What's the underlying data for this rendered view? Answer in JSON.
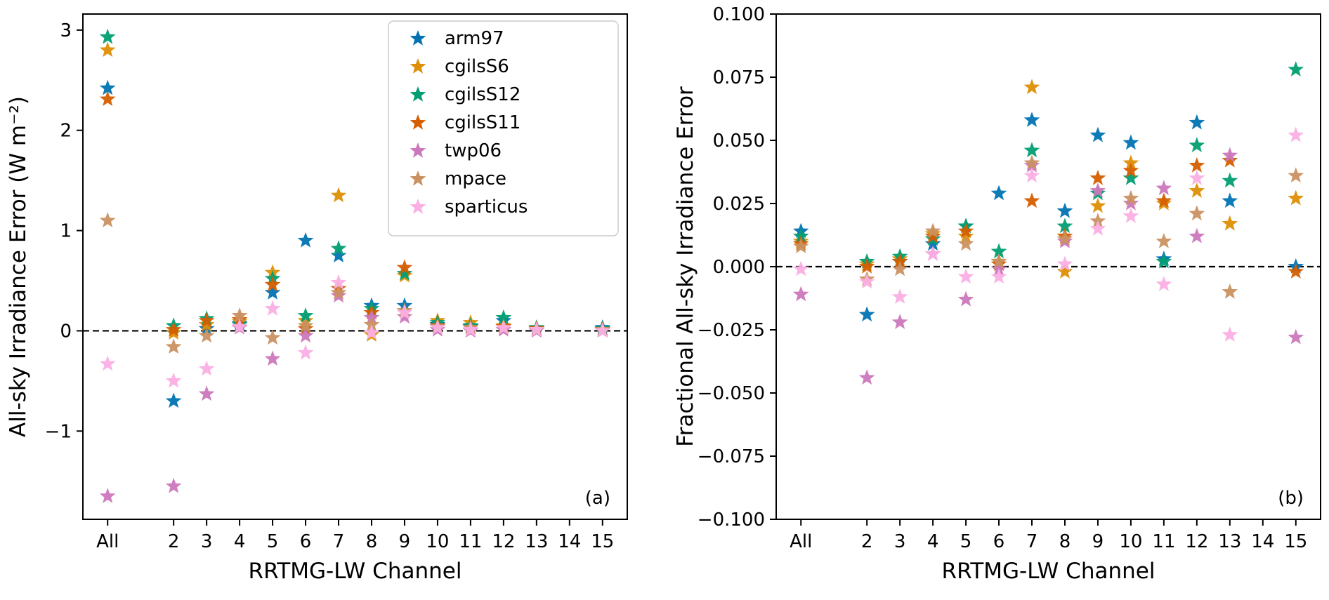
{
  "figure": {
    "background": "#ffffff",
    "text_color": "#000000"
  },
  "chart_data": [
    {
      "type": "scatter",
      "panel_label": "(a)",
      "xlabel": "RRTMG-LW Channel",
      "ylabel": "All-sky Irradiance Error (W m⁻²)",
      "x_categories": [
        "All",
        "2",
        "3",
        "4",
        "5",
        "6",
        "7",
        "8",
        "9",
        "10",
        "11",
        "12",
        "13",
        "14",
        "15"
      ],
      "x_positions": [
        0,
        2,
        3,
        4,
        5,
        6,
        7,
        8,
        9,
        10,
        11,
        12,
        13,
        14,
        15
      ],
      "xlim": [
        -0.75,
        15.75
      ],
      "ylim": [
        -1.88,
        3.16
      ],
      "yticks": [
        -1,
        0,
        1,
        2,
        3
      ],
      "ytick_labels": [
        "−1",
        "0",
        "1",
        "2",
        "3"
      ],
      "zero_line": true,
      "grid": false,
      "legend": {
        "visible": true,
        "position": "upper right"
      },
      "series": [
        {
          "name": "arm97",
          "color": "#0173b2",
          "marker": "star",
          "values": [
            2.42,
            -0.7,
            0.02,
            0.07,
            0.38,
            0.9,
            0.75,
            0.25,
            0.25,
            0.06,
            0.04,
            0.1,
            0.02,
            null,
            0.03
          ]
        },
        {
          "name": "cgilsS6",
          "color": "#de8f05",
          "marker": "star",
          "values": [
            2.8,
            -0.02,
            0.06,
            0.09,
            0.58,
            0.1,
            1.35,
            -0.04,
            0.55,
            0.1,
            0.08,
            0.05,
            0.02,
            null,
            0.01
          ]
        },
        {
          "name": "cgilsS12",
          "color": "#029e73",
          "marker": "star",
          "values": [
            2.93,
            0.05,
            0.12,
            0.06,
            0.52,
            0.15,
            0.82,
            0.22,
            0.57,
            0.08,
            0.05,
            0.13,
            0.03,
            null,
            0.02
          ]
        },
        {
          "name": "cgilsS11",
          "color": "#d55e00",
          "marker": "star",
          "values": [
            2.31,
            0.01,
            0.1,
            0.11,
            0.46,
            0.02,
            0.42,
            0.18,
            0.63,
            0.05,
            0.03,
            0.04,
            0.02,
            null,
            0.01
          ]
        },
        {
          "name": "twp06",
          "color": "#cc78bc",
          "marker": "star",
          "values": [
            -1.65,
            -1.55,
            -0.63,
            0.03,
            -0.28,
            -0.05,
            0.35,
            0.13,
            0.14,
            0.01,
            0.0,
            0.01,
            0.0,
            null,
            0.0
          ]
        },
        {
          "name": "mpace",
          "color": "#ca9161",
          "marker": "star",
          "values": [
            1.1,
            -0.16,
            -0.05,
            0.15,
            -0.07,
            0.05,
            0.38,
            0.06,
            0.2,
            0.04,
            0.03,
            0.03,
            0.01,
            null,
            0.01
          ]
        },
        {
          "name": "sparticus",
          "color": "#fbafe4",
          "marker": "star",
          "values": [
            -0.33,
            -0.5,
            -0.38,
            0.04,
            0.22,
            -0.22,
            0.48,
            -0.02,
            0.18,
            0.03,
            0.01,
            0.03,
            0.01,
            null,
            0.0
          ]
        }
      ]
    },
    {
      "type": "scatter",
      "panel_label": "(b)",
      "xlabel": "RRTMG-LW Channel",
      "ylabel": "Fractional All-sky Irradiance Error",
      "x_categories": [
        "All",
        "2",
        "3",
        "4",
        "5",
        "6",
        "7",
        "8",
        "9",
        "10",
        "11",
        "12",
        "13",
        "14",
        "15"
      ],
      "x_positions": [
        0,
        2,
        3,
        4,
        5,
        6,
        7,
        8,
        9,
        10,
        11,
        12,
        13,
        14,
        15
      ],
      "xlim": [
        -0.75,
        15.75
      ],
      "ylim": [
        -0.1,
        0.1
      ],
      "yticks": [
        -0.1,
        -0.075,
        -0.05,
        -0.025,
        0,
        0.025,
        0.05,
        0.075,
        0.1
      ],
      "ytick_labels": [
        "−0.100",
        "−0.075",
        "−0.050",
        "−0.025",
        "0.000",
        "0.025",
        "0.050",
        "0.075",
        "0.100"
      ],
      "zero_line": true,
      "grid": false,
      "legend": {
        "visible": false,
        "position": null
      },
      "series": [
        {
          "name": "arm97",
          "color": "#0173b2",
          "marker": "star",
          "values": [
            0.014,
            -0.019,
            0.002,
            0.009,
            0.016,
            0.029,
            0.058,
            0.022,
            0.052,
            0.049,
            0.003,
            0.057,
            0.026,
            null,
            0.0
          ]
        },
        {
          "name": "cgilsS6",
          "color": "#de8f05",
          "marker": "star",
          "values": [
            0.01,
            0.001,
            0.003,
            0.013,
            0.012,
            0.002,
            0.071,
            -0.002,
            0.024,
            0.041,
            0.025,
            0.03,
            0.017,
            null,
            0.027
          ]
        },
        {
          "name": "cgilsS12",
          "color": "#029e73",
          "marker": "star",
          "values": [
            0.012,
            0.002,
            0.004,
            0.011,
            0.016,
            0.006,
            0.046,
            0.016,
            0.029,
            0.035,
            0.002,
            0.048,
            0.034,
            null,
            0.078
          ]
        },
        {
          "name": "cgilsS11",
          "color": "#d55e00",
          "marker": "star",
          "values": [
            0.009,
            0.0,
            0.002,
            0.012,
            0.014,
            0.001,
            0.026,
            0.012,
            0.035,
            0.038,
            0.026,
            0.04,
            0.042,
            null,
            -0.002
          ]
        },
        {
          "name": "twp06",
          "color": "#cc78bc",
          "marker": "star",
          "values": [
            -0.011,
            -0.044,
            -0.022,
            0.005,
            -0.013,
            -0.001,
            0.04,
            0.01,
            0.03,
            0.025,
            0.031,
            0.012,
            0.044,
            null,
            -0.028
          ]
        },
        {
          "name": "mpace",
          "color": "#ca9161",
          "marker": "star",
          "values": [
            0.008,
            -0.005,
            -0.001,
            0.014,
            0.009,
            0.002,
            0.041,
            0.011,
            0.018,
            0.027,
            0.01,
            0.021,
            -0.01,
            null,
            0.036
          ]
        },
        {
          "name": "sparticus",
          "color": "#fbafe4",
          "marker": "star",
          "values": [
            -0.001,
            -0.006,
            -0.012,
            0.005,
            -0.004,
            -0.004,
            0.036,
            0.001,
            0.015,
            0.02,
            -0.007,
            0.035,
            -0.027,
            null,
            0.052
          ]
        }
      ]
    }
  ],
  "style": {
    "axis_color": "#000000",
    "zero_line_dash": "dashed",
    "legend_border_color": "#cccccc"
  }
}
